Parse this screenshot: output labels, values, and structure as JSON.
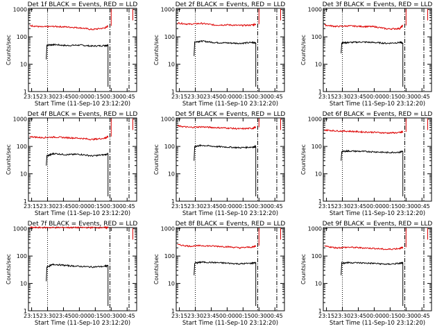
{
  "figure": {
    "shared_xlabel": "Start Time (11-Sep-10 23:12:20)",
    "shared_ylabel": "Counts/sec",
    "x_tick_labels": [
      "23:15",
      "23:30",
      "23:45",
      "00:00",
      "00:15",
      "00:30",
      "00:45"
    ],
    "y_tick_labels": [
      "1",
      "10",
      "100",
      "1000"
    ],
    "colors": {
      "events": "#000000",
      "lld": "#dd0000"
    }
  },
  "chart_data": [
    {
      "type": "line",
      "title": "Det 1f BLACK = Events, RED = LLD",
      "xlabel": "Start Time (11-Sep-10 23:12:20)",
      "ylabel": "Counts/sec",
      "yscale": "log",
      "ylim": [
        1,
        1000
      ],
      "series": [
        {
          "name": "Events",
          "color": "#000000",
          "x": [
            23.48,
            23.49,
            23.6,
            23.8,
            24.0,
            24.2,
            24.4,
            24.45
          ],
          "y": [
            15,
            50,
            52,
            48,
            50,
            46,
            48,
            50
          ]
        },
        {
          "name": "LLD",
          "color": "#dd0000",
          "x": [
            23.22,
            23.4,
            23.6,
            23.8,
            24.0,
            24.2,
            24.4,
            24.45
          ],
          "y": [
            260,
            230,
            240,
            230,
            215,
            185,
            210,
            250
          ]
        }
      ]
    },
    {
      "type": "line",
      "title": "Det 2f BLACK = Events, RED = LLD",
      "xlabel": "Start Time (11-Sep-10 23:12:20)",
      "ylabel": "Counts/sec",
      "yscale": "log",
      "ylim": [
        1,
        1000
      ],
      "series": [
        {
          "name": "Events",
          "color": "#000000",
          "x": [
            23.48,
            23.49,
            23.6,
            23.8,
            24.0,
            24.2,
            24.4,
            24.45
          ],
          "y": [
            20,
            65,
            70,
            62,
            60,
            58,
            62,
            60
          ]
        },
        {
          "name": "LLD",
          "color": "#dd0000",
          "x": [
            23.22,
            23.4,
            23.6,
            23.8,
            24.0,
            24.2,
            24.4,
            24.45
          ],
          "y": [
            320,
            290,
            310,
            270,
            275,
            260,
            270,
            290
          ]
        }
      ]
    },
    {
      "type": "line",
      "title": "Det 3f BLACK = Events, RED = LLD",
      "xlabel": "Start Time (11-Sep-10 23:12:20)",
      "ylabel": "Counts/sec",
      "yscale": "log",
      "ylim": [
        1,
        1000
      ],
      "series": [
        {
          "name": "Events",
          "color": "#000000",
          "x": [
            23.48,
            23.49,
            23.6,
            23.8,
            24.0,
            24.2,
            24.4,
            24.45
          ],
          "y": [
            25,
            60,
            62,
            65,
            62,
            58,
            62,
            60
          ]
        },
        {
          "name": "LLD",
          "color": "#dd0000",
          "x": [
            23.22,
            23.4,
            23.6,
            23.8,
            24.0,
            24.2,
            24.4,
            24.45
          ],
          "y": [
            270,
            240,
            250,
            240,
            235,
            195,
            200,
            260
          ]
        }
      ]
    },
    {
      "type": "line",
      "title": "Det 4f BLACK = Events, RED = LLD",
      "xlabel": "Start Time (11-Sep-10 23:12:20)",
      "ylabel": "Counts/sec",
      "yscale": "log",
      "ylim": [
        1,
        1000
      ],
      "series": [
        {
          "name": "Events",
          "color": "#000000",
          "x": [
            23.48,
            23.49,
            23.6,
            23.8,
            24.0,
            24.2,
            24.4,
            24.45
          ],
          "y": [
            20,
            45,
            55,
            50,
            52,
            45,
            50,
            52
          ]
        },
        {
          "name": "LLD",
          "color": "#dd0000",
          "x": [
            23.22,
            23.4,
            23.6,
            23.8,
            24.0,
            24.2,
            24.4,
            24.45
          ],
          "y": [
            230,
            210,
            220,
            210,
            200,
            180,
            200,
            230
          ]
        }
      ]
    },
    {
      "type": "line",
      "title": "Det 5f BLACK = Events, RED = LLD",
      "xlabel": "Start Time (11-Sep-10 23:12:20)",
      "ylabel": "Counts/sec",
      "yscale": "log",
      "ylim": [
        1,
        1000
      ],
      "series": [
        {
          "name": "Events",
          "color": "#000000",
          "x": [
            23.48,
            23.49,
            23.6,
            23.8,
            24.0,
            24.2,
            24.4,
            24.45
          ],
          "y": [
            30,
            100,
            110,
            100,
            95,
            90,
            95,
            100
          ]
        },
        {
          "name": "LLD",
          "color": "#dd0000",
          "x": [
            23.22,
            23.4,
            23.6,
            23.8,
            24.0,
            24.2,
            24.4,
            24.45
          ],
          "y": [
            560,
            500,
            520,
            490,
            470,
            440,
            460,
            500
          ]
        }
      ]
    },
    {
      "type": "line",
      "title": "Det 6f BLACK = Events, RED = LLD",
      "xlabel": "Start Time (11-Sep-10 23:12:20)",
      "ylabel": "Counts/sec",
      "yscale": "log",
      "ylim": [
        1,
        1000
      ],
      "series": [
        {
          "name": "Events",
          "color": "#000000",
          "x": [
            23.48,
            23.49,
            23.6,
            23.8,
            24.0,
            24.2,
            24.4,
            24.45
          ],
          "y": [
            30,
            65,
            68,
            66,
            64,
            60,
            62,
            65
          ]
        },
        {
          "name": "LLD",
          "color": "#dd0000",
          "x": [
            23.22,
            23.4,
            23.6,
            23.8,
            24.0,
            24.2,
            24.4,
            24.45
          ],
          "y": [
            400,
            370,
            360,
            340,
            330,
            310,
            320,
            340
          ]
        }
      ]
    },
    {
      "type": "line",
      "title": "Det 7f BLACK = Events, RED = LLD",
      "xlabel": "Start Time (11-Sep-10 23:12:20)",
      "ylabel": "Counts/sec",
      "yscale": "log",
      "ylim": [
        1,
        1000
      ],
      "series": [
        {
          "name": "Events",
          "color": "#000000",
          "x": [
            23.48,
            23.49,
            23.6,
            23.8,
            24.0,
            24.2,
            24.4,
            24.45
          ],
          "y": [
            12,
            40,
            50,
            45,
            42,
            40,
            42,
            45
          ]
        },
        {
          "name": "LLD",
          "color": "#dd0000",
          "x": [
            23.22,
            23.4,
            23.6,
            23.8,
            24.0,
            24.2,
            24.4,
            24.45
          ],
          "y": [
            1100,
            1100,
            1100,
            1100,
            1100,
            1100,
            1100,
            1100
          ]
        }
      ]
    },
    {
      "type": "line",
      "title": "Det 8f BLACK = Events, RED = LLD",
      "xlabel": "Start Time (11-Sep-10 23:12:20)",
      "ylabel": "Counts/sec",
      "yscale": "log",
      "ylim": [
        1,
        1000
      ],
      "series": [
        {
          "name": "Events",
          "color": "#000000",
          "x": [
            23.48,
            23.49,
            23.6,
            23.8,
            24.0,
            24.2,
            24.4,
            24.45
          ],
          "y": [
            20,
            55,
            60,
            58,
            55,
            52,
            55,
            58
          ]
        },
        {
          "name": "LLD",
          "color": "#dd0000",
          "x": [
            23.22,
            23.4,
            23.6,
            23.8,
            24.0,
            24.2,
            24.4,
            24.45
          ],
          "y": [
            260,
            230,
            240,
            230,
            220,
            200,
            215,
            240
          ]
        }
      ]
    },
    {
      "type": "line",
      "title": "Det 9f BLACK = Events, RED = LLD",
      "xlabel": "Start Time (11-Sep-10 23:12:20)",
      "ylabel": "Counts/sec",
      "yscale": "log",
      "ylim": [
        1,
        1000
      ],
      "series": [
        {
          "name": "Events",
          "color": "#000000",
          "x": [
            23.48,
            23.49,
            23.6,
            23.8,
            24.0,
            24.2,
            24.4,
            24.45
          ],
          "y": [
            20,
            55,
            58,
            56,
            54,
            50,
            54,
            56
          ]
        },
        {
          "name": "LLD",
          "color": "#dd0000",
          "x": [
            23.22,
            23.4,
            23.6,
            23.8,
            24.0,
            24.2,
            24.4,
            24.45
          ],
          "y": [
            230,
            200,
            210,
            200,
            190,
            175,
            190,
            210
          ]
        }
      ]
    }
  ]
}
